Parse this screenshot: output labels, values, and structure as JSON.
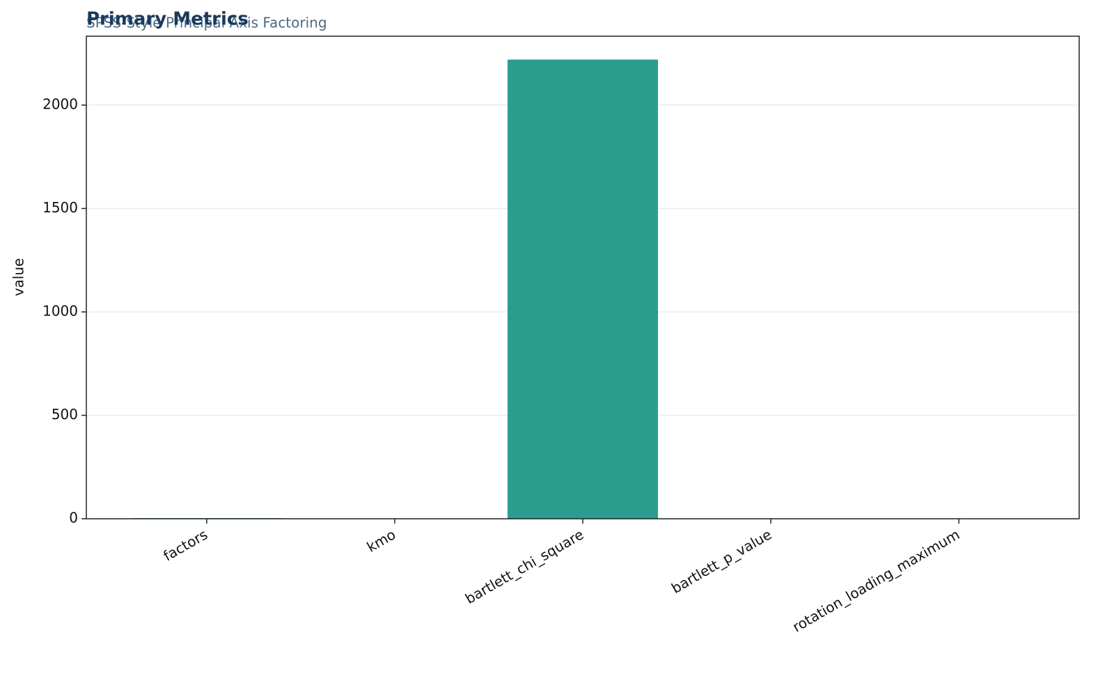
{
  "chart_data": {
    "type": "bar",
    "title": "Primary Metrics",
    "subtitle": "SPSS-Style Principal Axis Factoring",
    "y_label": "value",
    "categories": [
      "factors",
      "kmo",
      "bartlett_chi_square",
      "bartlett_p_value",
      "rotation_loading_maximum"
    ],
    "values": [
      3,
      0.8,
      2220,
      0,
      0.9
    ],
    "color": "#2a9d8f",
    "ylim": [
      0,
      2333
    ],
    "yticks": [
      0,
      500,
      1000,
      1500,
      2000
    ],
    "grid": true
  }
}
